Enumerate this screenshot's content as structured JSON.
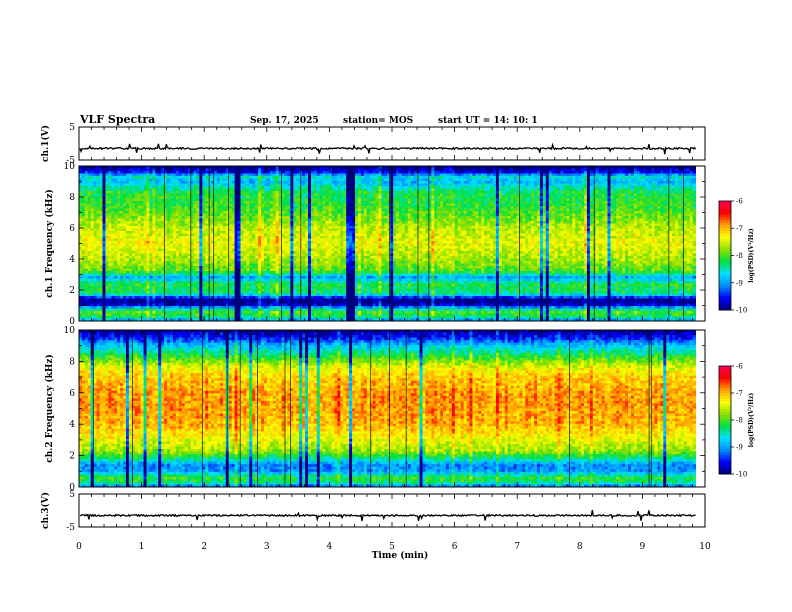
{
  "header": {
    "title": "VLF Spectra",
    "date": "Sep. 17, 2025",
    "station": "station= MOS",
    "start": "start  UT =   14: 10: 1"
  },
  "colors": {
    "spectrogram_scale": [
      "#00007a",
      "#0000ff",
      "#0090ff",
      "#00e0ff",
      "#00e040",
      "#90e000",
      "#ffff00",
      "#ffa000",
      "#ff0000",
      "#ff0050"
    ],
    "trace": "#000000"
  },
  "chart_data": [
    {
      "type": "line",
      "name": "ch1-waveform",
      "ylabel": "ch.1(V)",
      "ylim": [
        -5,
        5
      ],
      "yticks": [
        "5",
        "-5"
      ],
      "xlim": [
        0,
        10
      ],
      "baseline": -1.5,
      "data_end": 9.85
    },
    {
      "type": "heatmap",
      "name": "ch1-spectrogram",
      "ylabel": "ch.1\nFrequency (kHz)",
      "ylim": [
        0,
        10
      ],
      "yticks": [
        "0",
        "2",
        "4",
        "6",
        "8",
        "10"
      ],
      "xlim": [
        0,
        10
      ],
      "data_end": 9.85,
      "colorbar": {
        "label": "log(PSD)(V²/Hz)",
        "range": [
          -10,
          -6
        ],
        "ticks": [
          "-6",
          "-7",
          "-8",
          "-9",
          "-10"
        ]
      },
      "profile": [
        [
          0.0,
          -9.2
        ],
        [
          0.3,
          -8.2
        ],
        [
          0.6,
          -8.0
        ],
        [
          1.1,
          -9.9
        ],
        [
          1.4,
          -9.9
        ],
        [
          1.8,
          -8.3
        ],
        [
          2.4,
          -8.2
        ],
        [
          2.8,
          -9.0
        ],
        [
          3.2,
          -8.0
        ],
        [
          3.7,
          -7.8
        ],
        [
          4.2,
          -7.6
        ],
        [
          5.0,
          -7.4
        ],
        [
          6.0,
          -7.6
        ],
        [
          6.8,
          -7.9
        ],
        [
          7.5,
          -8.1
        ],
        [
          8.3,
          -8.2
        ],
        [
          8.8,
          -8.7
        ],
        [
          9.0,
          -8.9
        ],
        [
          9.3,
          -8.6
        ],
        [
          9.6,
          -9.6
        ],
        [
          10.0,
          -10.0
        ]
      ]
    },
    {
      "type": "heatmap",
      "name": "ch2-spectrogram",
      "ylabel": "ch.2\nFrequency (kHz)",
      "ylim": [
        0,
        10
      ],
      "yticks": [
        "0",
        "2",
        "4",
        "6",
        "8",
        "10"
      ],
      "xlim": [
        0,
        10
      ],
      "data_end": 9.85,
      "colorbar": {
        "label": "log(PSD)(V²/Hz)",
        "range": [
          -10,
          -6
        ],
        "ticks": [
          "-6",
          "-7",
          "-8",
          "-9",
          "-10"
        ]
      },
      "profile": [
        [
          0.0,
          -9.3
        ],
        [
          0.3,
          -8.3
        ],
        [
          0.6,
          -8.1
        ],
        [
          1.0,
          -9.0
        ],
        [
          1.4,
          -9.1
        ],
        [
          1.8,
          -8.4
        ],
        [
          2.3,
          -7.7
        ],
        [
          3.0,
          -7.4
        ],
        [
          4.0,
          -7.0
        ],
        [
          5.0,
          -6.9
        ],
        [
          6.0,
          -6.9
        ],
        [
          7.0,
          -7.1
        ],
        [
          7.6,
          -7.4
        ],
        [
          8.0,
          -7.8
        ],
        [
          8.5,
          -8.3
        ],
        [
          9.0,
          -8.8
        ],
        [
          9.5,
          -9.5
        ],
        [
          10.0,
          -9.9
        ]
      ]
    },
    {
      "type": "line",
      "name": "ch3-waveform",
      "ylabel": "ch.3(V)",
      "ylim": [
        -5,
        5
      ],
      "yticks": [
        "5",
        "-5"
      ],
      "xlim": [
        0,
        10
      ],
      "baseline": -1.5,
      "data_end": 9.85
    }
  ],
  "x_axis": {
    "label": "Time  (min)",
    "ticks": [
      "0",
      "1",
      "2",
      "3",
      "4",
      "5",
      "6",
      "7",
      "8",
      "9",
      "10"
    ]
  }
}
